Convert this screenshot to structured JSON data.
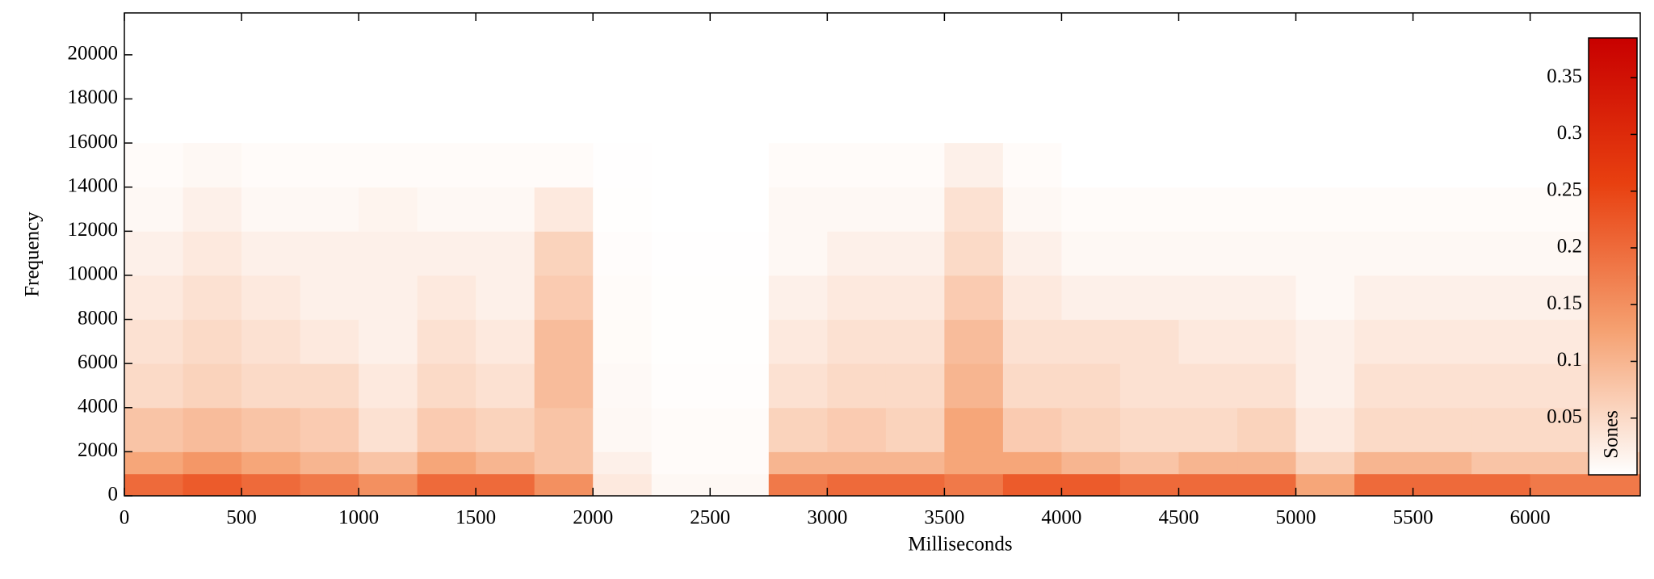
{
  "chart_data": {
    "type": "heatmap",
    "xlabel": "Milliseconds",
    "ylabel": "Frequency",
    "xlim": [
      0,
      6470
    ],
    "ylim": [
      0,
      21900
    ],
    "xticks": [
      0,
      500,
      1000,
      1500,
      2000,
      2500,
      3000,
      3500,
      4000,
      4500,
      5000,
      5500,
      6000
    ],
    "yticks": [
      0,
      2000,
      4000,
      6000,
      8000,
      10000,
      12000,
      14000,
      16000,
      18000,
      20000
    ],
    "xbins": [
      0,
      250,
      500,
      750,
      1000,
      1250,
      1500,
      1750,
      2000,
      2250,
      2500,
      2750,
      3000,
      3250,
      3500,
      3750,
      4000,
      4250,
      4500,
      4750,
      5000,
      5250,
      5500,
      5750,
      6000,
      6250,
      6470
    ],
    "ybins": [
      0,
      1000,
      2000,
      4000,
      6000,
      8000,
      10000,
      12000,
      14000,
      16000
    ],
    "values": [
      [
        0.2,
        0.22,
        0.2,
        0.18,
        0.15,
        0.2,
        0.2,
        0.15,
        0.03,
        0.01,
        0.01,
        0.18,
        0.2,
        0.2,
        0.18,
        0.22,
        0.22,
        0.2,
        0.2,
        0.2,
        0.12,
        0.2,
        0.2,
        0.2,
        0.18,
        0.18
      ],
      [
        0.12,
        0.14,
        0.12,
        0.1,
        0.08,
        0.12,
        0.1,
        0.08,
        0.02,
        0.005,
        0.005,
        0.1,
        0.1,
        0.1,
        0.12,
        0.12,
        0.1,
        0.08,
        0.1,
        0.1,
        0.06,
        0.1,
        0.1,
        0.08,
        0.08,
        0.08
      ],
      [
        0.08,
        0.09,
        0.08,
        0.07,
        0.04,
        0.07,
        0.06,
        0.08,
        0.01,
        0.005,
        0.005,
        0.06,
        0.07,
        0.06,
        0.12,
        0.07,
        0.06,
        0.05,
        0.05,
        0.06,
        0.03,
        0.05,
        0.05,
        0.05,
        0.05,
        0.05
      ],
      [
        0.05,
        0.06,
        0.05,
        0.05,
        0.03,
        0.05,
        0.04,
        0.09,
        0.008,
        0.003,
        0.003,
        0.04,
        0.05,
        0.05,
        0.1,
        0.05,
        0.05,
        0.04,
        0.04,
        0.04,
        0.02,
        0.04,
        0.04,
        0.04,
        0.04,
        0.05
      ],
      [
        0.04,
        0.05,
        0.04,
        0.03,
        0.02,
        0.04,
        0.03,
        0.09,
        0.006,
        0.002,
        0.002,
        0.03,
        0.04,
        0.04,
        0.09,
        0.04,
        0.04,
        0.04,
        0.03,
        0.03,
        0.02,
        0.03,
        0.03,
        0.03,
        0.03,
        0.05
      ],
      [
        0.03,
        0.04,
        0.03,
        0.02,
        0.02,
        0.03,
        0.02,
        0.07,
        0.005,
        0.002,
        0.002,
        0.02,
        0.03,
        0.03,
        0.07,
        0.03,
        0.02,
        0.02,
        0.02,
        0.02,
        0.01,
        0.02,
        0.02,
        0.02,
        0.02,
        0.04
      ],
      [
        0.02,
        0.03,
        0.02,
        0.02,
        0.02,
        0.02,
        0.02,
        0.06,
        0.004,
        0.001,
        0.001,
        0.01,
        0.02,
        0.02,
        0.05,
        0.02,
        0.01,
        0.01,
        0.01,
        0.01,
        0.01,
        0.01,
        0.01,
        0.01,
        0.01,
        0.02
      ],
      [
        0.01,
        0.02,
        0.01,
        0.01,
        0.015,
        0.01,
        0.01,
        0.03,
        0.002,
        0,
        0,
        0.01,
        0.01,
        0.01,
        0.04,
        0.01,
        0.005,
        0.005,
        0.005,
        0.005,
        0.005,
        0.005,
        0.005,
        0.005,
        0.005,
        0.01
      ],
      [
        0.005,
        0.01,
        0.005,
        0.005,
        0.005,
        0.005,
        0.005,
        0.005,
        0.001,
        0,
        0,
        0.005,
        0.005,
        0.005,
        0.02,
        0.005,
        0,
        0,
        0,
        0,
        0,
        0,
        0,
        0,
        0,
        0
      ]
    ],
    "colormap": [
      "#ffffff",
      "#f5a070",
      "#e84010",
      "#c80000"
    ],
    "colorbar": {
      "label": "Sones",
      "lim": [
        0,
        0.385
      ],
      "ticks": [
        0.05,
        0.1,
        0.15,
        0.2,
        0.25,
        0.3,
        0.35
      ]
    }
  }
}
